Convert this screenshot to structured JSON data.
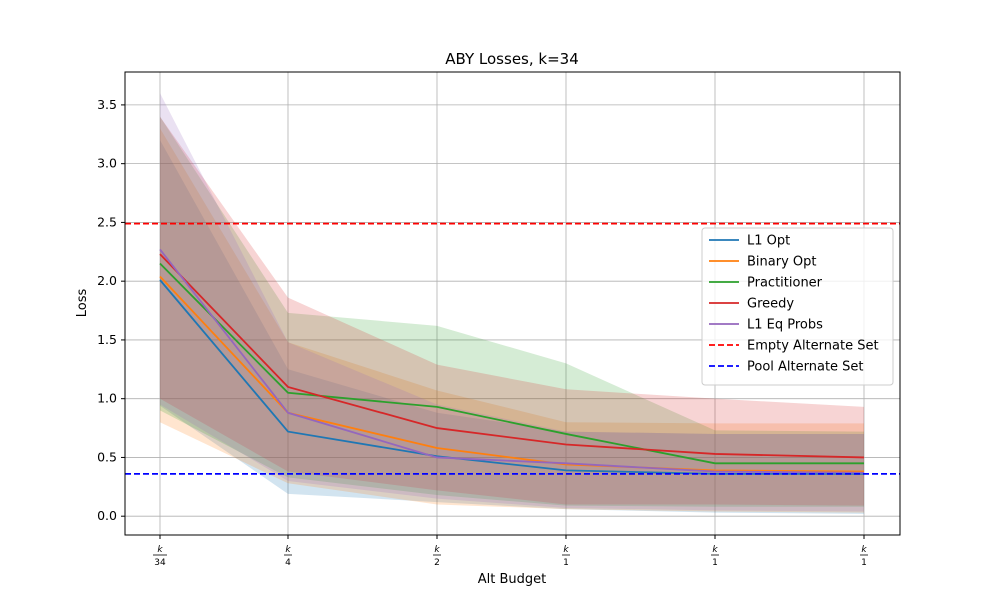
{
  "chart_data": {
    "type": "line",
    "title": "ABY Losses, k=34",
    "xlabel": "Alt Budget",
    "ylabel": "Loss",
    "x_ticks": [
      {
        "num": "k",
        "den": "34"
      },
      {
        "num": "k",
        "den": "4"
      },
      {
        "num": "k",
        "den": "2"
      },
      {
        "num": "k",
        "den": "1"
      },
      {
        "num": "k",
        "den": "1"
      },
      {
        "num": "k",
        "den": "1"
      }
    ],
    "ylim": [
      -0.16,
      3.78
    ],
    "y_ticks": [
      "0.0",
      "0.5",
      "1.0",
      "1.5",
      "2.0",
      "2.5",
      "3.0",
      "3.5"
    ],
    "y_tick_values": [
      0,
      0.5,
      1.0,
      1.5,
      2.0,
      2.5,
      3.0,
      3.5
    ],
    "grid": true,
    "legend_position": "center-right",
    "series": [
      {
        "name": "L1 Opt",
        "color": "#1f77b4",
        "values": [
          2.01,
          0.72,
          0.51,
          0.39,
          0.36,
          0.36
        ],
        "lower": [
          0.94,
          0.19,
          0.12,
          0.06,
          0.03,
          0.02
        ],
        "upper": [
          3.2,
          1.25,
          0.88,
          0.72,
          0.7,
          0.7
        ]
      },
      {
        "name": "Binary Opt",
        "color": "#ff7f0e",
        "values": [
          2.04,
          0.88,
          0.58,
          0.44,
          0.39,
          0.38
        ],
        "lower": [
          0.8,
          0.28,
          0.1,
          0.06,
          0.04,
          0.03
        ],
        "upper": [
          3.3,
          1.48,
          1.07,
          0.8,
          0.79,
          0.79
        ]
      },
      {
        "name": "Practitioner",
        "color": "#2ca02c",
        "values": [
          2.15,
          1.05,
          0.93,
          0.7,
          0.45,
          0.45
        ],
        "lower": [
          0.9,
          0.33,
          0.18,
          0.09,
          0.08,
          0.08
        ],
        "upper": [
          3.4,
          1.73,
          1.62,
          1.3,
          0.73,
          0.72
        ]
      },
      {
        "name": "Greedy",
        "color": "#d62728",
        "values": [
          2.23,
          1.1,
          0.75,
          0.61,
          0.53,
          0.5
        ],
        "lower": [
          1.0,
          0.38,
          0.22,
          0.1,
          0.1,
          0.09
        ],
        "upper": [
          3.4,
          1.86,
          1.29,
          1.08,
          1.0,
          0.93
        ]
      },
      {
        "name": "L1 Eq Probs",
        "color": "#9467bd",
        "values": [
          2.27,
          0.88,
          0.5,
          0.45,
          0.38,
          0.37
        ],
        "lower": [
          0.95,
          0.3,
          0.15,
          0.07,
          0.05,
          0.04
        ],
        "upper": [
          3.6,
          1.48,
          0.95,
          0.72,
          0.7,
          0.7
        ]
      }
    ],
    "reference_lines": [
      {
        "name": "Empty Alternate Set",
        "color": "#ff0000",
        "value": 2.49,
        "style": "dashed"
      },
      {
        "name": "Pool Alternate Set",
        "color": "#0000ff",
        "value": 0.36,
        "style": "dashed"
      }
    ]
  }
}
